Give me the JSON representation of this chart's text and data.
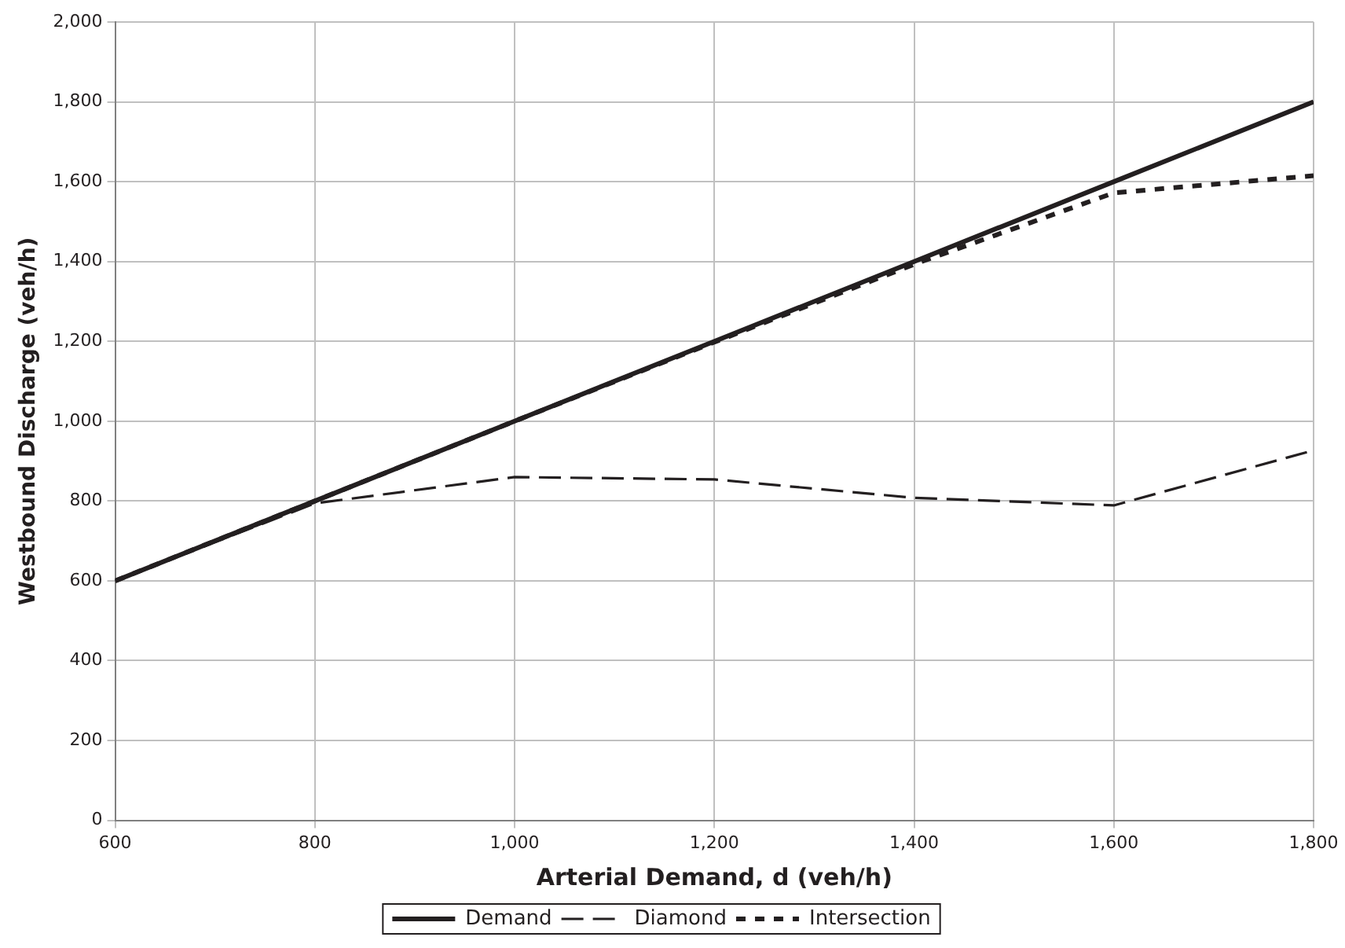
{
  "chart_data": {
    "type": "line",
    "xlabel": "Arterial Demand, d (veh/h)",
    "ylabel": "Westbound Discharge (veh/h)",
    "x": [
      600,
      800,
      1000,
      1200,
      1400,
      1600,
      1800
    ],
    "series": [
      {
        "name": "Demand",
        "color": "#231f20",
        "values": [
          600,
          800,
          1000,
          1200,
          1400,
          1600,
          1800
        ],
        "line_style": "solid"
      },
      {
        "name": "Diamond",
        "color": "#231f20",
        "values": [
          600,
          794,
          860,
          854,
          808,
          789,
          927
        ],
        "line_style": "dashed"
      },
      {
        "name": "Intersection",
        "color": "#231f20",
        "values": [
          600,
          800,
          1000,
          1198,
          1393,
          1572,
          1615
        ],
        "line_style": "dotted"
      }
    ],
    "xlim": [
      600,
      1800
    ],
    "xticks": [
      {
        "value": 600,
        "label": "600"
      },
      {
        "value": 800,
        "label": "800"
      },
      {
        "value": 1000,
        "label": "1,000"
      },
      {
        "value": 1200,
        "label": "1,200"
      },
      {
        "value": 1400,
        "label": "1,400"
      },
      {
        "value": 1600,
        "label": "1,600"
      },
      {
        "value": 1800,
        "label": "1,800"
      }
    ],
    "ylim": [
      0,
      2000
    ],
    "yticks": [
      0,
      200,
      400,
      600,
      800,
      {
        "value": 1000,
        "label": "1,000"
      },
      {
        "value": 1200,
        "label": "1,200"
      },
      {
        "value": 1400,
        "label": "1,400"
      },
      {
        "value": 1600,
        "label": "1,600"
      },
      {
        "value": 1800,
        "label": "1,800"
      },
      {
        "value": 2000,
        "label": "2,000"
      }
    ],
    "grid": true,
    "legend": "bottom",
    "marker": "none"
  }
}
